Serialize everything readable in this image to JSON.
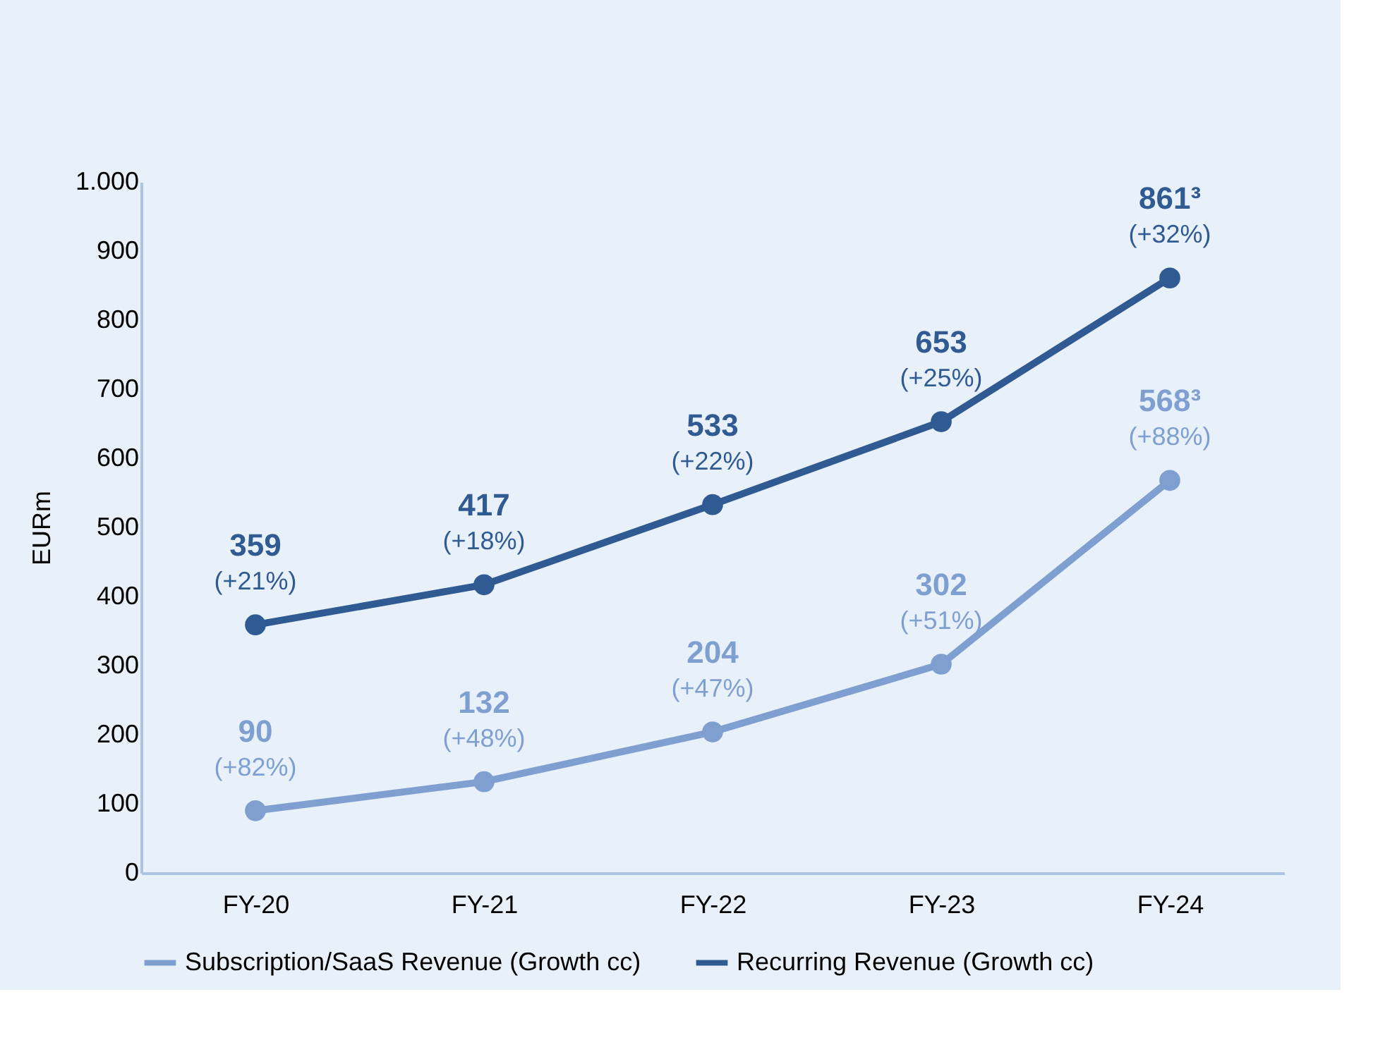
{
  "chart_data": {
    "type": "line",
    "ylabel": "EURm",
    "categories": [
      "FY-20",
      "FY-21",
      "FY-22",
      "FY-23",
      "FY-24"
    ],
    "series": [
      {
        "name": "Subscription/SaaS Revenue (Growth cc)",
        "color": "#7f9fd1",
        "values": [
          90,
          132,
          204,
          302,
          568
        ],
        "value_labels": [
          "90\n(+82%)",
          "132\n(+48%)",
          "204\n(+47%)",
          "302\n(+51%)",
          "568³\n(+88%)"
        ]
      },
      {
        "name": "Recurring Revenue (Growth cc)",
        "color": "#2f5a92",
        "values": [
          359,
          417,
          533,
          653,
          861
        ],
        "value_labels": [
          "359\n(+21%)",
          "417\n(+18%)",
          "533\n(+22%)",
          "653\n(+25%)",
          "861³\n(+32%)"
        ]
      }
    ],
    "ylim": [
      0,
      1000
    ],
    "yticks": [
      0,
      100,
      200,
      300,
      400,
      500,
      600,
      700,
      800,
      900,
      {
        "value": 1000,
        "label": "1.000"
      }
    ],
    "grid": false,
    "legend": "bottom",
    "marker": "circle",
    "line_style": "solid"
  }
}
